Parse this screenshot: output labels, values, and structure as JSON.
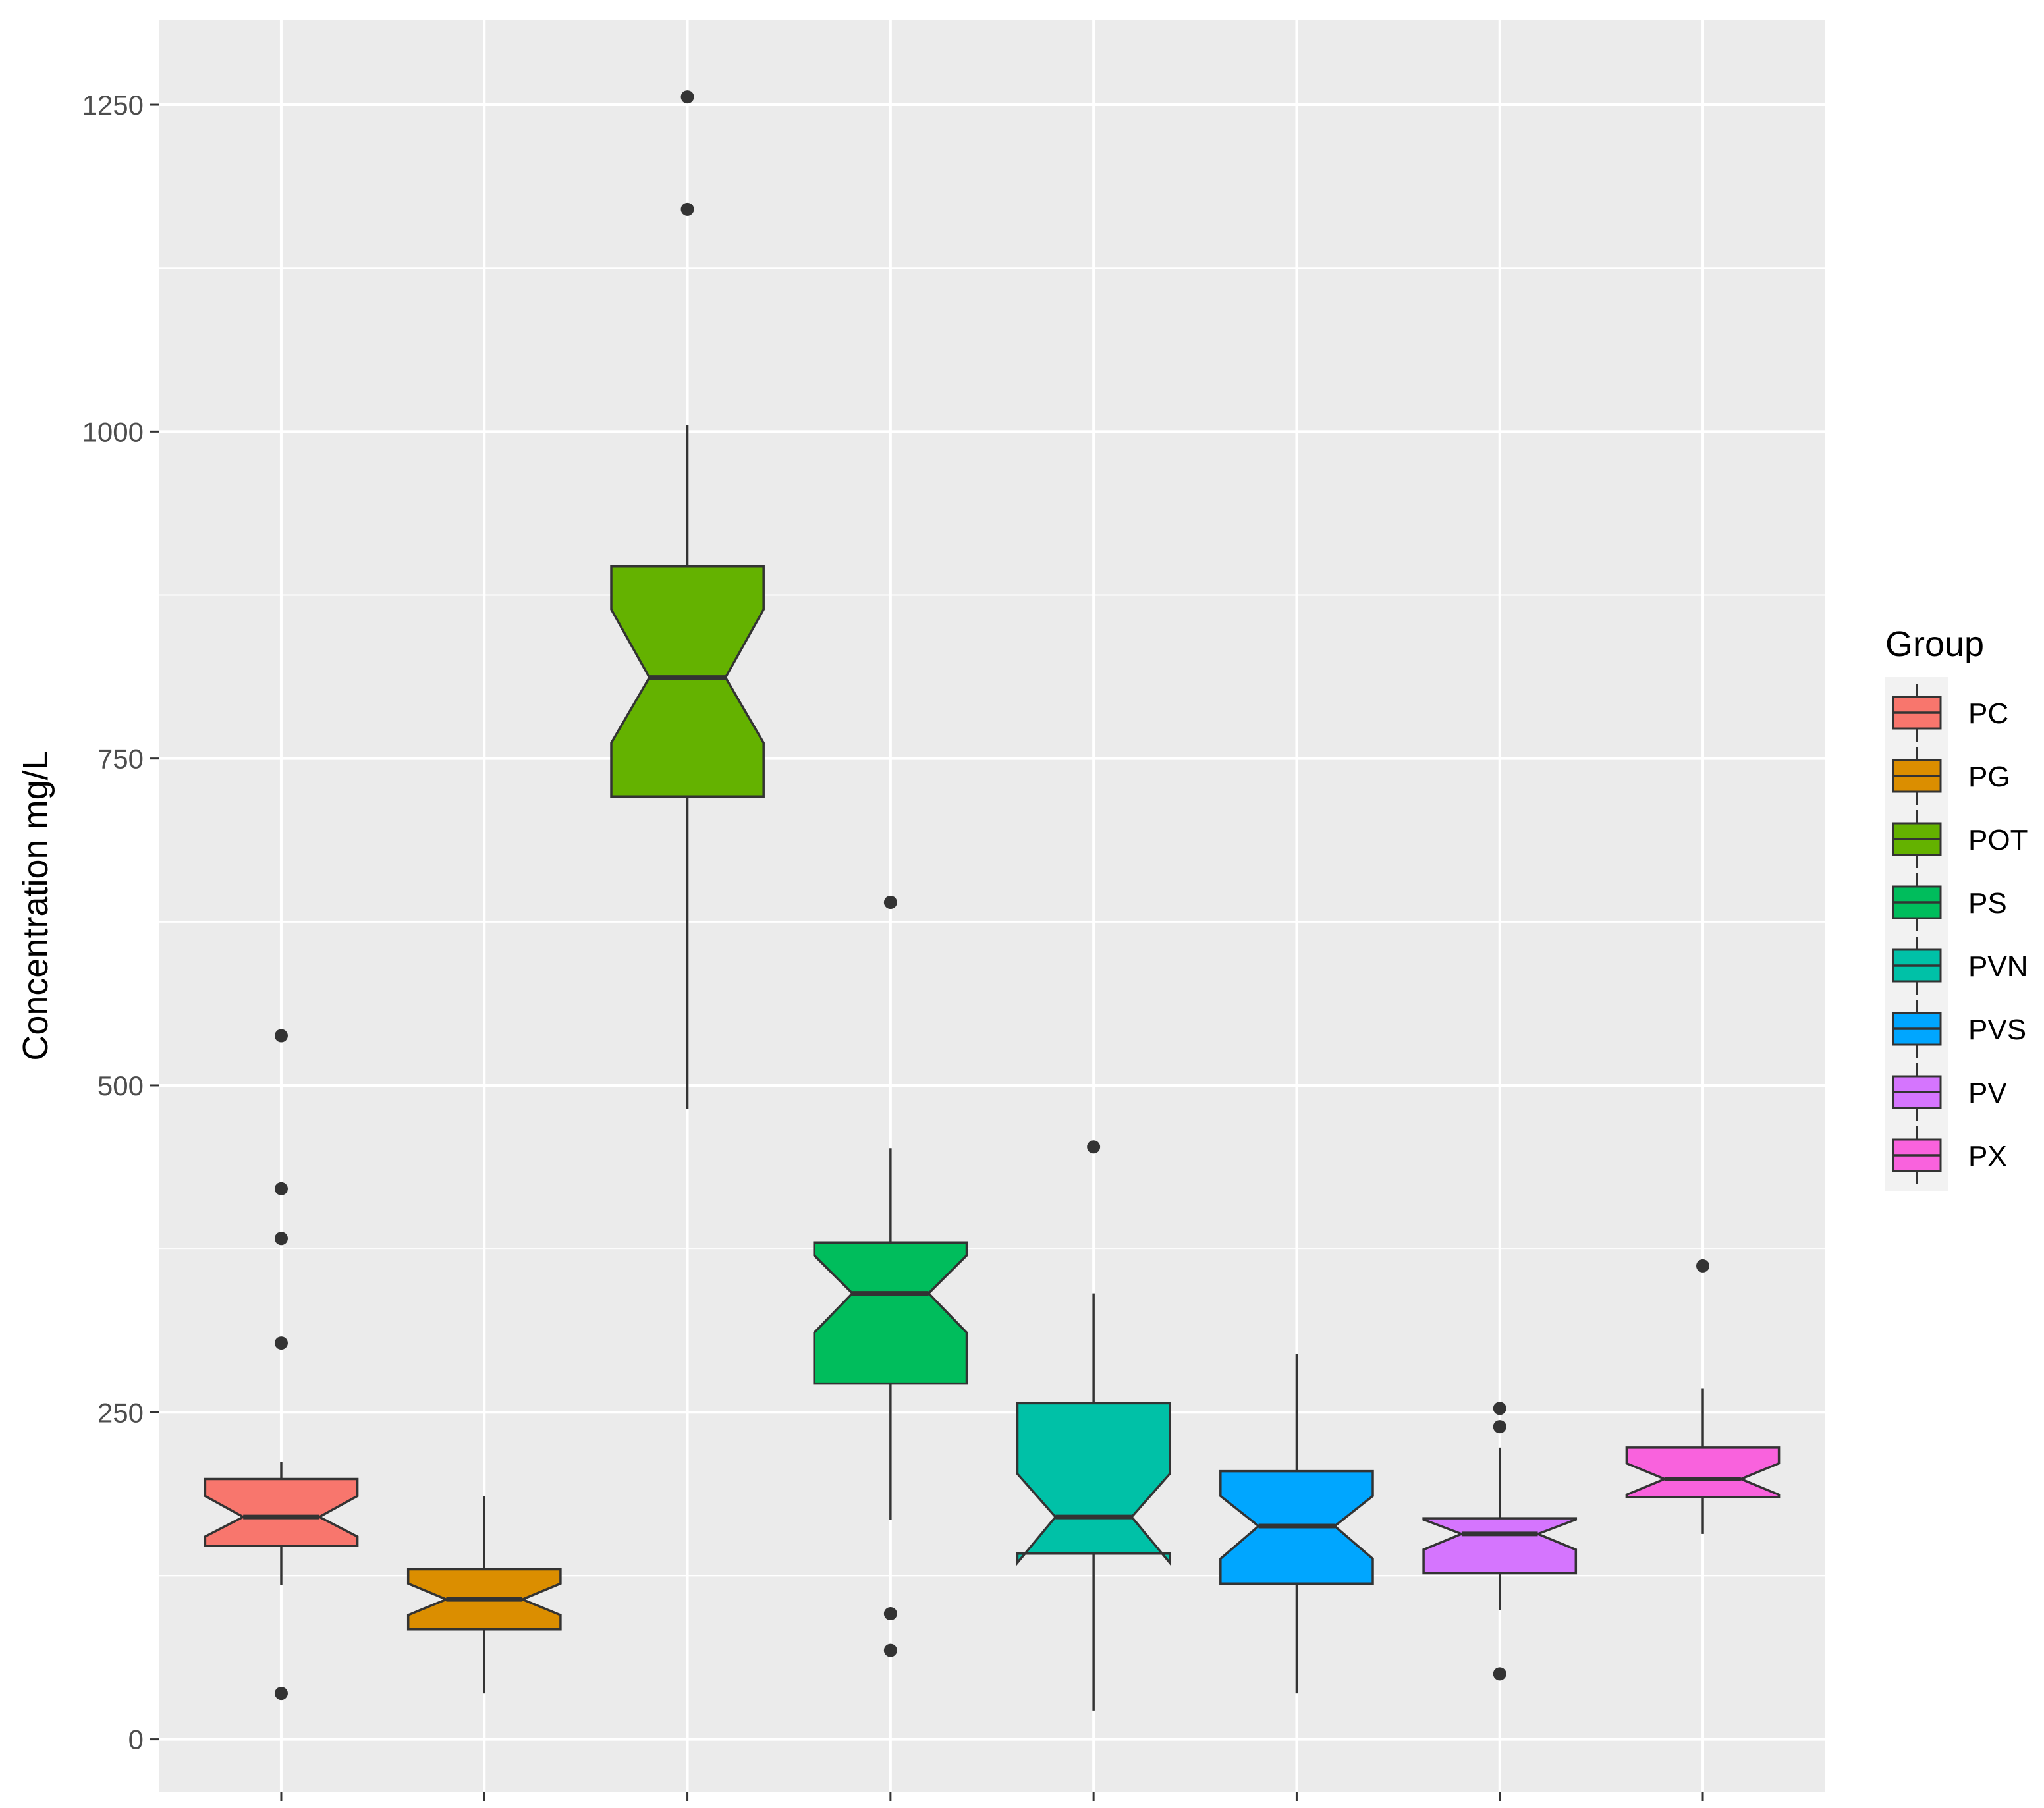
{
  "chart_data": {
    "type": "boxplot",
    "notched": true,
    "ylabel": "Concentration mg/L",
    "xlabel": "",
    "ylim": [
      -40,
      1315
    ],
    "yticks": [
      0,
      250,
      500,
      750,
      1000,
      1250
    ],
    "grid": true,
    "background": "#ebebeb",
    "legend": {
      "title": "Group",
      "position": "right"
    },
    "categories": [
      "PC",
      "PG",
      "POT",
      "PS",
      "PVN",
      "PVS",
      "PV",
      "PX"
    ],
    "series": [
      {
        "name": "PC",
        "color": "#f8766d",
        "whisker_low": 118,
        "q1": 148,
        "median": 170,
        "q3": 199,
        "whisker_high": 212,
        "notch_low": 155,
        "notch_high": 186,
        "outliers": [
          35,
          303,
          383,
          421,
          538
        ]
      },
      {
        "name": "PG",
        "color": "#db8e00",
        "whisker_low": 35,
        "q1": 84,
        "median": 107,
        "q3": 130,
        "whisker_high": 186,
        "notch_low": 95,
        "notch_high": 119,
        "outliers": []
      },
      {
        "name": "POT",
        "color": "#64b200",
        "whisker_low": 482,
        "q1": 721,
        "median": 812,
        "q3": 897,
        "whisker_high": 1005,
        "notch_low": 762,
        "notch_high": 864,
        "outliers": [
          1170,
          1256
        ]
      },
      {
        "name": "PS",
        "color": "#00bd5c",
        "whisker_low": 168,
        "q1": 272,
        "median": 341,
        "q3": 380,
        "whisker_high": 452,
        "notch_low": 311,
        "notch_high": 370,
        "outliers": [
          68,
          96,
          640
        ]
      },
      {
        "name": "PVN",
        "color": "#00c1a7",
        "whisker_low": 22,
        "q1": 142,
        "median": 170,
        "q3": 257,
        "whisker_high": 341,
        "notch_low": 135,
        "notch_high": 203,
        "outliers": [
          453
        ]
      },
      {
        "name": "PVS",
        "color": "#00a6ff",
        "whisker_low": 35,
        "q1": 119,
        "median": 163,
        "q3": 205,
        "whisker_high": 295,
        "notch_low": 138,
        "notch_high": 186,
        "outliers": []
      },
      {
        "name": "PV",
        "color": "#d575fe",
        "whisker_low": 99,
        "q1": 127,
        "median": 157,
        "q3": 169,
        "whisker_high": 223,
        "notch_low": 145,
        "notch_high": 168,
        "outliers": [
          50,
          239,
          253
        ]
      },
      {
        "name": "PX",
        "color": "#f962dd",
        "whisker_low": 157,
        "q1": 185,
        "median": 199,
        "q3": 223,
        "whisker_high": 268,
        "notch_low": 187,
        "notch_high": 211,
        "outliers": [
          362
        ]
      }
    ]
  }
}
